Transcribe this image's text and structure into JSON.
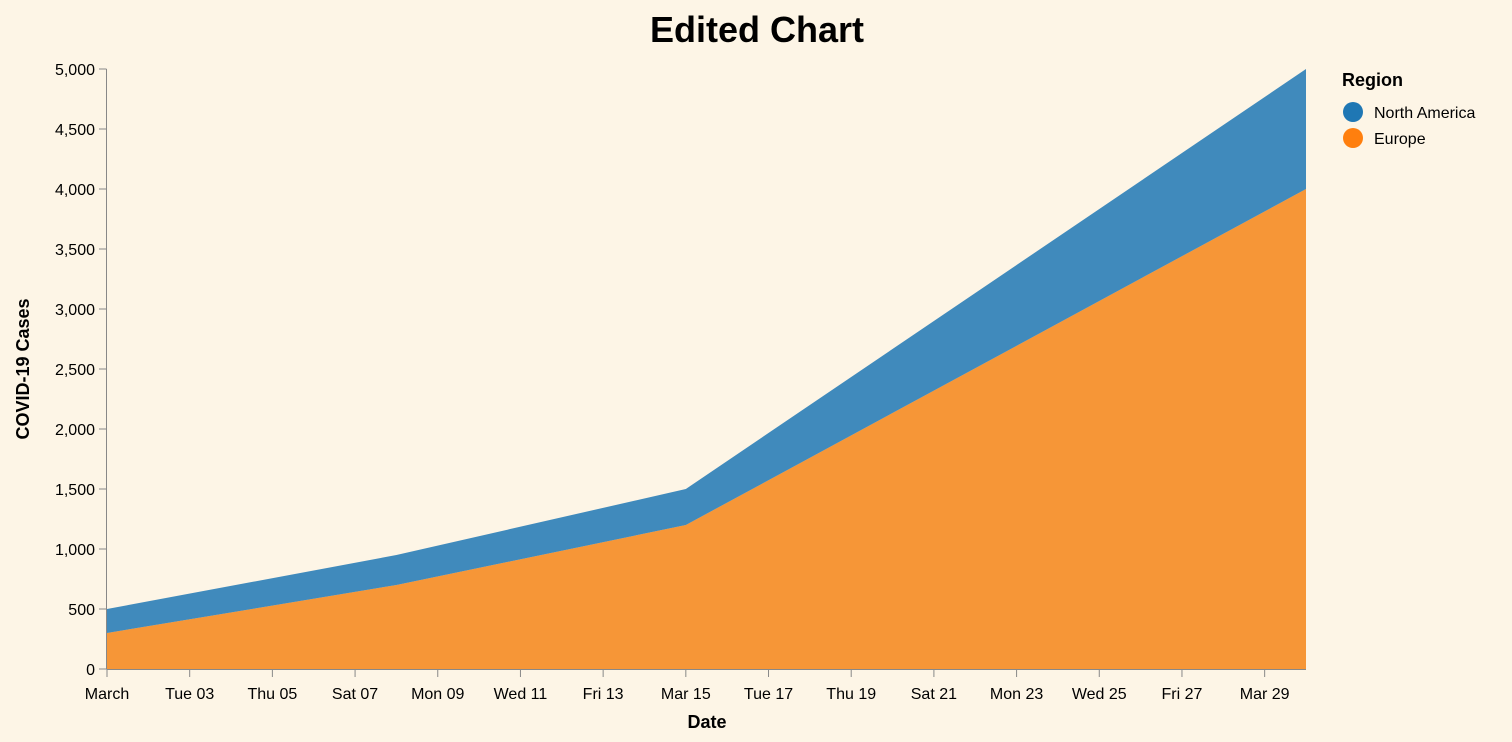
{
  "chart_data": {
    "type": "area",
    "stacked": true,
    "title": "Edited Chart",
    "xlabel": "Date",
    "ylabel": "COVID-19 Cases",
    "x_domain": [
      "2020-03-01",
      "2020-03-30"
    ],
    "ylim": [
      0,
      5000
    ],
    "y_ticks": [
      0,
      500,
      1000,
      1500,
      2000,
      2500,
      3000,
      3500,
      4000,
      4500,
      5000
    ],
    "y_tick_labels": [
      "0",
      "500",
      "1,000",
      "1,500",
      "2,000",
      "2,500",
      "3,000",
      "3,500",
      "4,000",
      "4,500",
      "5,000"
    ],
    "x_ticks": [
      {
        "date": "2020-03-01",
        "label": "March"
      },
      {
        "date": "2020-03-03",
        "label": "Tue 03"
      },
      {
        "date": "2020-03-05",
        "label": "Thu 05"
      },
      {
        "date": "2020-03-07",
        "label": "Sat 07"
      },
      {
        "date": "2020-03-09",
        "label": "Mon 09"
      },
      {
        "date": "2020-03-11",
        "label": "Wed 11"
      },
      {
        "date": "2020-03-13",
        "label": "Fri 13"
      },
      {
        "date": "2020-03-15",
        "label": "Mar 15"
      },
      {
        "date": "2020-03-17",
        "label": "Tue 17"
      },
      {
        "date": "2020-03-19",
        "label": "Thu 19"
      },
      {
        "date": "2020-03-21",
        "label": "Sat 21"
      },
      {
        "date": "2020-03-23",
        "label": "Mon 23"
      },
      {
        "date": "2020-03-25",
        "label": "Wed 25"
      },
      {
        "date": "2020-03-27",
        "label": "Fri 27"
      },
      {
        "date": "2020-03-29",
        "label": "Mar 29"
      }
    ],
    "x": [
      "2020-03-01",
      "2020-03-08",
      "2020-03-15",
      "2020-03-30"
    ],
    "series": [
      {
        "name": "Europe",
        "color": "#f58518",
        "values": [
          300,
          700,
          1200,
          4000
        ]
      },
      {
        "name": "North America",
        "color": "#1f77b4",
        "values": [
          200,
          250,
          300,
          1000
        ]
      }
    ],
    "legend": {
      "title": "Region",
      "position": "top-right",
      "entries": [
        {
          "name": "North America",
          "color": "#1f77b4"
        },
        {
          "name": "Europe",
          "color": "#ff7f0e"
        }
      ]
    },
    "grid": false
  }
}
